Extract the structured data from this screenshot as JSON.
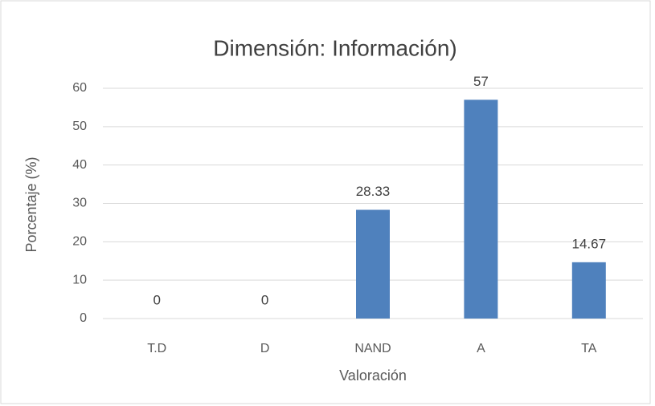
{
  "chart_data": {
    "type": "bar",
    "title": "Dimensión: Información)",
    "x_label": "Valoración",
    "y_label": "Porcentaje  (%)",
    "categories": [
      "T.D",
      "D",
      "NAND",
      "A",
      "TA"
    ],
    "values": [
      0,
      0,
      28.33,
      57,
      14.67
    ],
    "color": "#4f81bd",
    "ylim": [
      0,
      60
    ],
    "yticks": [
      0,
      10,
      20,
      30,
      40,
      50,
      60
    ],
    "grid": true
  }
}
